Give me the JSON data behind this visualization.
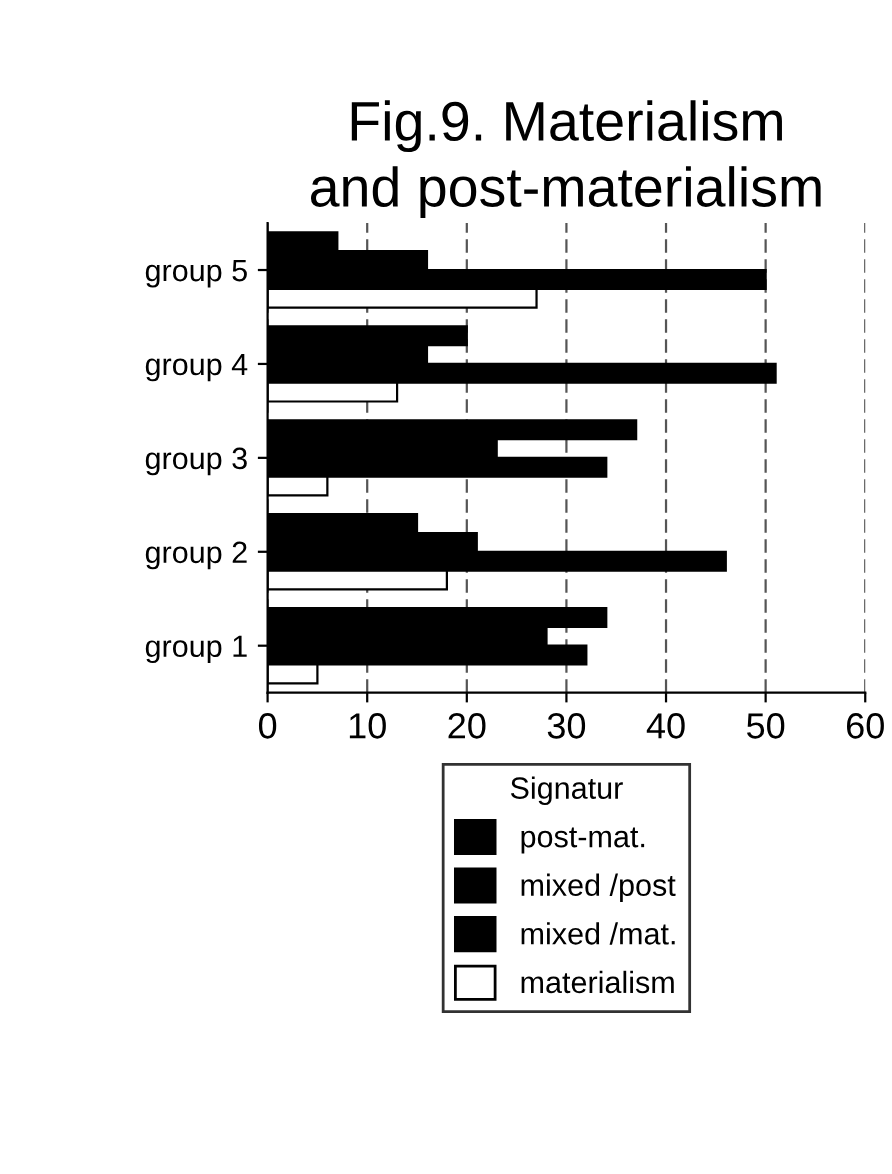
{
  "chart_data": {
    "type": "bar",
    "orientation": "horizontal",
    "title": "Fig.9. Materialism\nand post-materialism",
    "categories": [
      "group 5",
      "group 4",
      "group 3",
      "group 2",
      "group 1"
    ],
    "series": [
      {
        "name": "post-mat.",
        "color": "#000000",
        "values": [
          7,
          20,
          37,
          15,
          34
        ]
      },
      {
        "name": "mixed /post",
        "color": "#000000",
        "values": [
          16,
          16,
          23,
          21,
          28
        ]
      },
      {
        "name": "mixed /mat.",
        "color": "#000000",
        "values": [
          50,
          51,
          34,
          46,
          32
        ]
      },
      {
        "name": "materialism",
        "color": "#ffffff",
        "values": [
          27,
          13,
          6,
          18,
          5
        ]
      }
    ],
    "xlim": [
      0,
      60
    ],
    "xticks": [
      0,
      10,
      20,
      30,
      40,
      50,
      60
    ],
    "grid": "x",
    "legend": "bottom",
    "legend_title": "Signatur"
  }
}
